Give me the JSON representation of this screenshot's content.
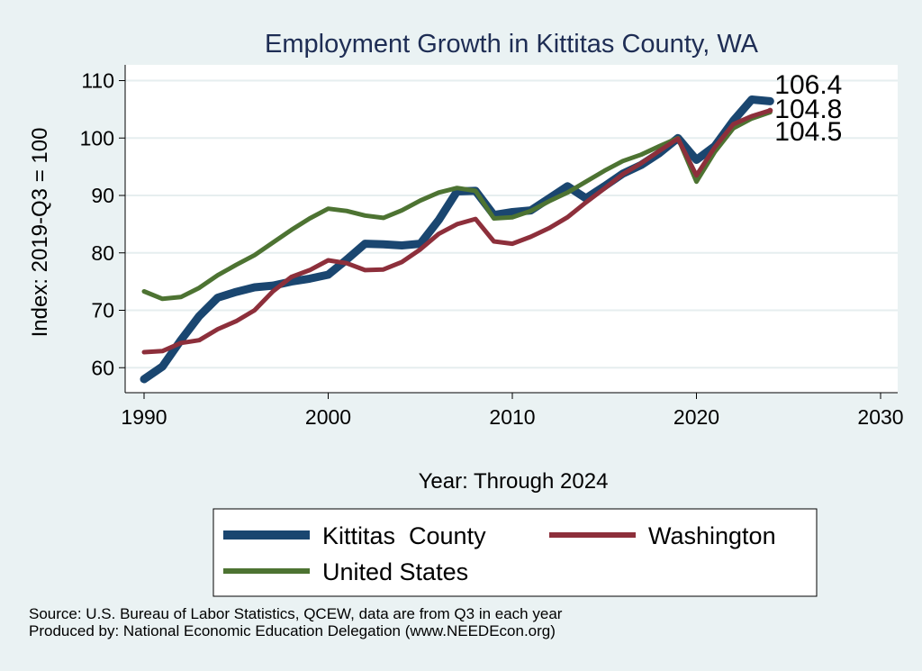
{
  "chart_data": {
    "type": "line",
    "title": "Employment Growth in Kittitas County, WA",
    "xlabel": "Year: Through 2024",
    "ylabel": "Index: 2019-Q3 = 100",
    "xlim": [
      1990,
      2030
    ],
    "ylim": [
      55,
      112
    ],
    "xticks": [
      1990,
      2000,
      2010,
      2020,
      2030
    ],
    "yticks": [
      60,
      70,
      80,
      90,
      100,
      110
    ],
    "grid": true,
    "legend_position": "bottom",
    "x": [
      1990,
      1991,
      1992,
      1993,
      1994,
      1995,
      1996,
      1997,
      1998,
      1999,
      2000,
      2001,
      2002,
      2003,
      2004,
      2005,
      2006,
      2007,
      2008,
      2009,
      2010,
      2011,
      2012,
      2013,
      2014,
      2015,
      2016,
      2017,
      2018,
      2019,
      2020,
      2021,
      2022,
      2023,
      2024
    ],
    "series": [
      {
        "name": "Kittitas  County",
        "color": "#1a4670",
        "width": 9,
        "values": [
          58.0,
          60.2,
          64.8,
          69.0,
          72.2,
          73.2,
          74.0,
          74.3,
          75.0,
          75.5,
          76.2,
          78.8,
          81.6,
          81.5,
          81.3,
          81.6,
          85.7,
          90.7,
          90.8,
          86.6,
          87.1,
          87.4,
          89.5,
          91.6,
          89.5,
          91.6,
          93.8,
          95.3,
          97.4,
          100.0,
          96.2,
          98.6,
          103.0,
          106.7,
          106.4
        ],
        "end_label": "106.4"
      },
      {
        "name": "Washington",
        "color": "#8d2f3b",
        "width": 5,
        "values": [
          62.7,
          62.9,
          64.3,
          64.8,
          66.7,
          68.1,
          70.0,
          73.3,
          75.8,
          77.0,
          78.7,
          78.2,
          77.0,
          77.1,
          78.4,
          80.6,
          83.3,
          85.0,
          85.9,
          82.0,
          81.6,
          82.8,
          84.3,
          86.2,
          88.8,
          91.2,
          93.7,
          95.6,
          97.8,
          99.9,
          93.5,
          98.4,
          102.4,
          103.8,
          104.8
        ],
        "end_label": "104.8"
      },
      {
        "name": "United States",
        "color": "#4d7332",
        "width": 5,
        "values": [
          73.3,
          72.0,
          72.3,
          73.9,
          76.1,
          77.9,
          79.6,
          81.8,
          84.0,
          86.0,
          87.7,
          87.3,
          86.5,
          86.1,
          87.4,
          89.1,
          90.5,
          91.3,
          90.8,
          86.0,
          86.2,
          87.3,
          89.0,
          90.5,
          92.4,
          94.3,
          96.0,
          97.1,
          98.6,
          100.0,
          92.4,
          97.6,
          101.7,
          103.4,
          104.5
        ],
        "end_label": "104.5"
      }
    ]
  },
  "source_lines": [
    "Source: U.S. Bureau of Labor Statistics, QCEW, data are from Q3 in each year",
    "Produced by: National Economic Education Delegation (www.NEEDEcon.org)"
  ]
}
